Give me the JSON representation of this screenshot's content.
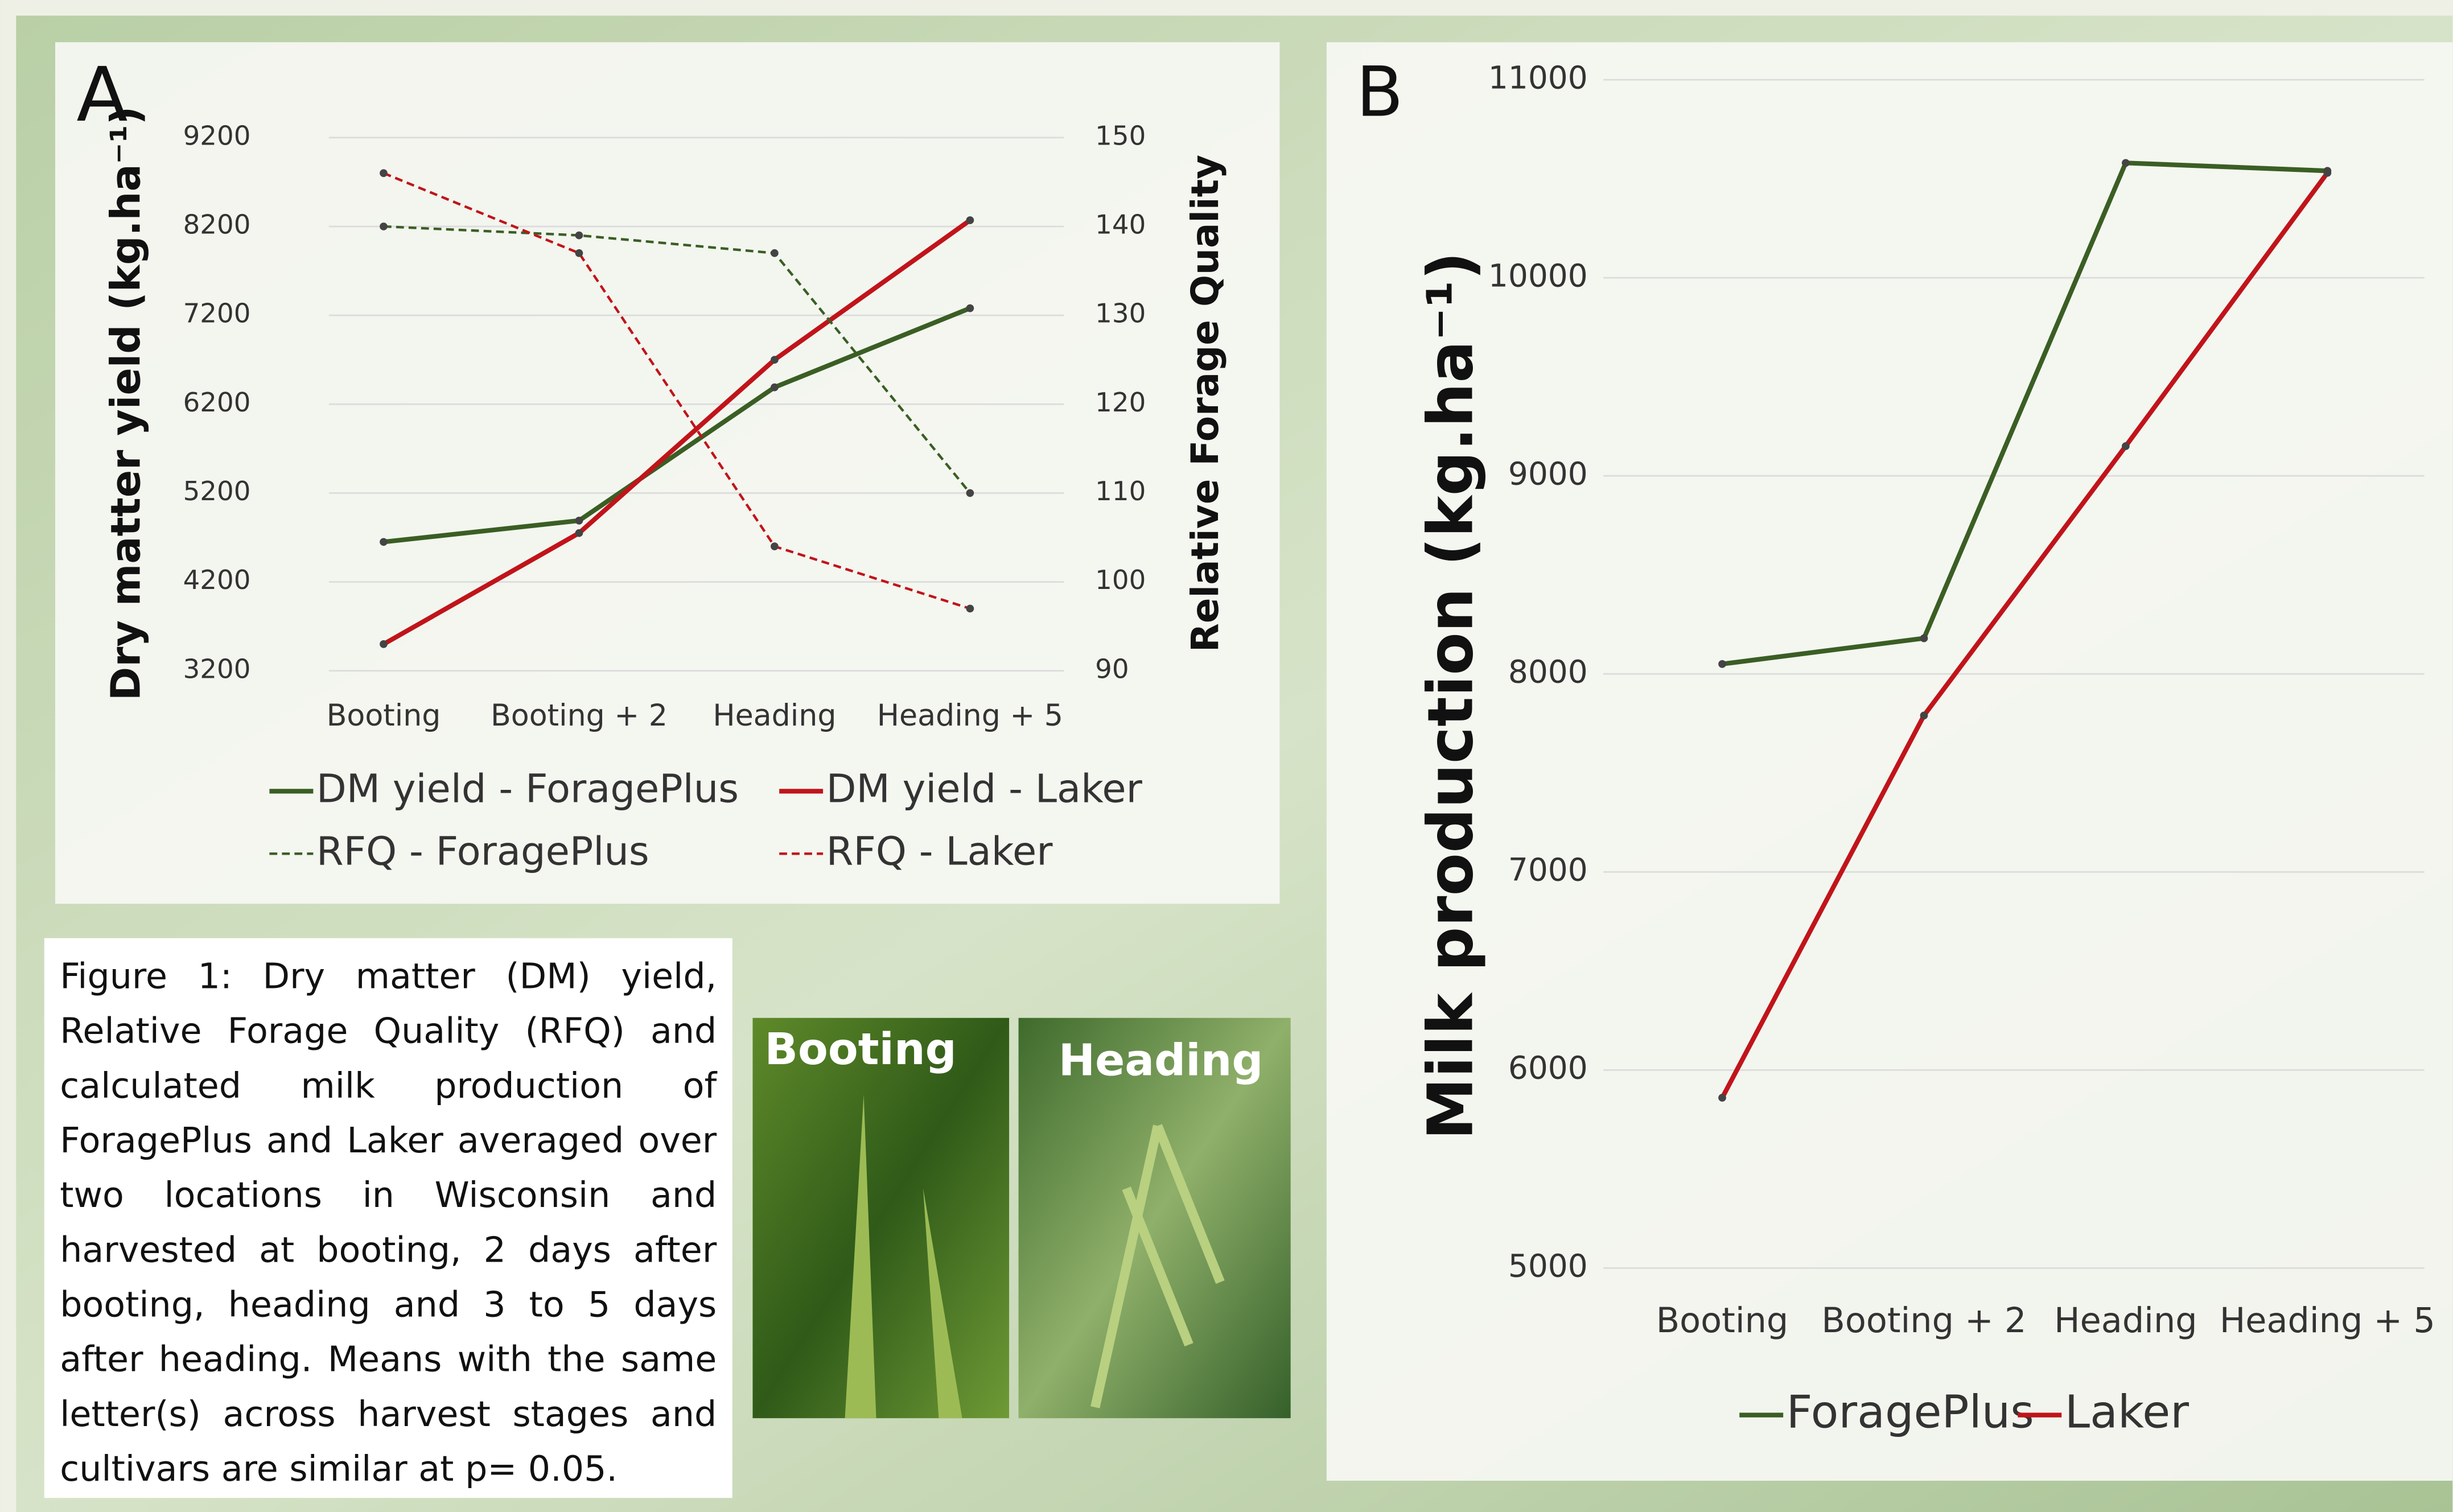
{
  "chart_data": [
    {
      "type": "line",
      "panel": "A",
      "categories": [
        "Booting",
        "Booting + 2",
        "Heading",
        "Heading + 5"
      ],
      "y_label": "Dry matter yield (kg.ha⁻¹)",
      "y2_label": "Relative Forage Quality",
      "ylim": [
        3200,
        9200
      ],
      "yticks": [
        3200,
        4200,
        5200,
        6200,
        7200,
        8200,
        9200
      ],
      "y2lim": [
        90,
        150
      ],
      "y2ticks": [
        90,
        100,
        110,
        120,
        130,
        140,
        150
      ],
      "grid": true,
      "series": [
        {
          "name": "DM yield - ForagePlus",
          "color": "#3a5e24",
          "line_style": "solid",
          "values": [
            4650,
            4890,
            6390,
            7280
          ]
        },
        {
          "name": "DM yield - Laker",
          "color": "#c0141a",
          "line_style": "solid",
          "values": [
            3500,
            4750,
            6700,
            8270
          ]
        },
        {
          "name": "RFQ - ForagePlus",
          "color": "#3a5e24",
          "line_style": "dashed",
          "axis": "y2",
          "values": [
            140,
            139,
            137,
            110
          ]
        },
        {
          "name": "RFQ - Laker",
          "color": "#c0141a",
          "line_style": "dashed",
          "axis": "y2",
          "values": [
            146,
            137,
            104,
            97
          ]
        }
      ]
    },
    {
      "type": "line",
      "panel": "B",
      "categories": [
        "Booting",
        "Booting + 2",
        "Heading",
        "Heading + 5"
      ],
      "y_label": "Milk production (kg.ha⁻¹)",
      "ylim": [
        5000,
        11000
      ],
      "yticks": [
        5000,
        6000,
        7000,
        8000,
        9000,
        10000,
        11000
      ],
      "grid": true,
      "series": [
        {
          "name": "ForagePlus",
          "color": "#3a5e24",
          "line_style": "solid",
          "values": [
            8050,
            8180,
            10580,
            10540
          ]
        },
        {
          "name": "Laker",
          "color": "#c0141a",
          "line_style": "solid",
          "values": [
            5860,
            7790,
            9150,
            10530
          ]
        }
      ]
    }
  ],
  "caption": "Figure 1: Dry matter (DM) yield, Relative Forage Quality (RFQ) and calculated milk production of ForagePlus and Laker averaged over two locations in Wisconsin and harvested at booting, 2 days after booting, heading and 3 to 5 days after heading. Means with the same letter(s) across harvest stages and cultivars are similar at p= 0.05.",
  "photo_labels": [
    "Booting",
    "Heading"
  ]
}
